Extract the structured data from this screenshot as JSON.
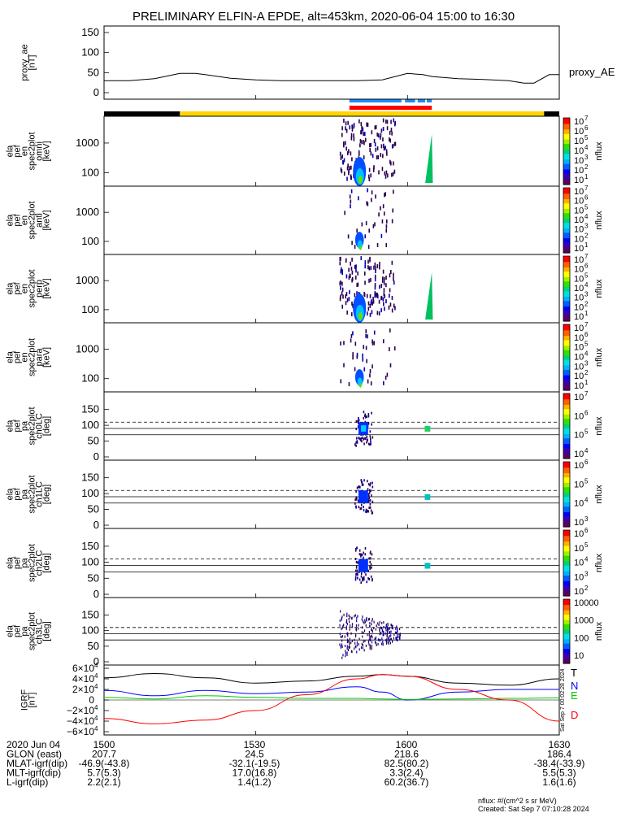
{
  "title": "PRELIMINARY ELFIN-A EPDE, alt=453km, 2020-06-04 15:00 to 16:30",
  "colors": {
    "colorbar": [
      "#5a0060",
      "#3a00b0",
      "#0000ff",
      "#0060ff",
      "#00b0ff",
      "#00e0e0",
      "#00d080",
      "#30e000",
      "#a0f000",
      "#ffff00",
      "#ffb000",
      "#ff6000",
      "#ff0000"
    ],
    "status_bar": [
      "#000000",
      "#ffd400"
    ],
    "blue_marks": "#1a8cff",
    "red_mark": "#ff0000",
    "field": {
      "T": "#000000",
      "N": "#0000ff",
      "E": "#00cc00",
      "D": "#ff0000"
    }
  },
  "panels": [
    {
      "id": "proxy_ae",
      "ylabel": [
        "proxy_ae",
        "[nT]"
      ],
      "yticks": [
        "150",
        "100",
        "50",
        "0"
      ],
      "legend": "proxy_AE"
    },
    {
      "id": "omni",
      "ylabel": [
        "ela",
        "pef",
        "en",
        "spec2plot",
        "omni",
        "[keV]"
      ],
      "yticks": [
        "1000",
        "100"
      ],
      "cb_ticks": [
        "10",
        "7",
        "10",
        "6",
        "10",
        "5",
        "10",
        "4",
        "10",
        "3",
        "10",
        "2",
        "10",
        "1"
      ],
      "cb_label": "nflux"
    },
    {
      "id": "anti",
      "ylabel": [
        "ela",
        "pef",
        "en",
        "spec2plot",
        "anti",
        "[keV]"
      ],
      "yticks": [
        "1000",
        "100"
      ],
      "cb_ticks": [
        "10",
        "7",
        "10",
        "6",
        "10",
        "5",
        "10",
        "4",
        "10",
        "3",
        "10",
        "2",
        "10",
        "1"
      ],
      "cb_label": "nflux"
    },
    {
      "id": "perp",
      "ylabel": [
        "ela",
        "pef",
        "en",
        "spec2plot",
        "perp",
        "[keV]"
      ],
      "yticks": [
        "1000",
        "100"
      ],
      "cb_ticks": [
        "10",
        "7",
        "10",
        "6",
        "10",
        "5",
        "10",
        "4",
        "10",
        "3",
        "10",
        "2",
        "10",
        "1"
      ],
      "cb_label": "nflux"
    },
    {
      "id": "para",
      "ylabel": [
        "ela",
        "pef",
        "en",
        "spec2plot",
        "para",
        "[keV]"
      ],
      "yticks": [
        "1000",
        "100"
      ],
      "cb_ticks": [
        "10",
        "7",
        "10",
        "6",
        "10",
        "5",
        "10",
        "4",
        "10",
        "3",
        "10",
        "2",
        "10",
        "1"
      ],
      "cb_label": "nflux"
    },
    {
      "id": "ch0LC",
      "ylabel": [
        "ela",
        "pef",
        "pa",
        "spec2plot",
        "ch0LC",
        "[deg]"
      ],
      "yticks": [
        "150",
        "100",
        "50",
        "0"
      ],
      "cb_ticks": [
        "10",
        "7",
        "10",
        "6",
        "10",
        "5",
        "10",
        "4"
      ],
      "cb_label": "nflux"
    },
    {
      "id": "ch1LC",
      "ylabel": [
        "ela",
        "pef",
        "pa",
        "spec2plot",
        "ch1LC",
        "[deg]"
      ],
      "yticks": [
        "150",
        "100",
        "50",
        "0"
      ],
      "cb_ticks": [
        "10",
        "6",
        "10",
        "5",
        "10",
        "4",
        "10",
        "3"
      ],
      "cb_label": "nflux"
    },
    {
      "id": "ch2LC",
      "ylabel": [
        "ela",
        "pef",
        "pa",
        "spec2plot",
        "ch2LC",
        "[deg]"
      ],
      "yticks": [
        "150",
        "100",
        "50",
        "0"
      ],
      "cb_ticks": [
        "10",
        "6",
        "10",
        "5",
        "10",
        "4",
        "10",
        "3",
        "10",
        "2"
      ],
      "cb_label": "nflux"
    },
    {
      "id": "ch3LC",
      "ylabel": [
        "ela",
        "pef",
        "pa",
        "spec2plot",
        "ch3LC",
        "[deg]"
      ],
      "yticks": [
        "150",
        "100",
        "50",
        "0"
      ],
      "cb_ticks": [
        "10000",
        "1000",
        "100",
        "10"
      ],
      "cb_label": "nflux"
    },
    {
      "id": "igrf",
      "ylabel": [
        "IGRF",
        "[nT]"
      ],
      "yticks": [
        "6×10",
        "4×10",
        "2×10",
        "0",
        "−2×10",
        "−4×10",
        "−6×10"
      ],
      "ytick_exp": "4",
      "legend": [
        "T",
        "N",
        "E",
        "D"
      ]
    }
  ],
  "side_stamp": "Sat Sep  7 00:02:28 2024",
  "footer": {
    "rows": [
      {
        "label": "2020 Jun 04",
        "values": [
          "1500",
          "1530",
          "1600",
          "1630"
        ]
      },
      {
        "label": "GLON (east)",
        "values": [
          "207.7",
          "24.5",
          "218.6",
          "186.4"
        ]
      },
      {
        "label": "MLAT-igrf(dip)",
        "values": [
          "-46.9(-43.8)",
          "-32.1(-19.5)",
          "82.5(80.2)",
          "-38.4(-33.9)"
        ]
      },
      {
        "label": "MLT-igrf(dip)",
        "values": [
          "5.7(5.3)",
          "17.0(16.8)",
          "3.3(2.4)",
          "5.5(5.3)"
        ]
      },
      {
        "label": "L-igrf(dip)",
        "values": [
          "2.2(2.1)",
          "1.4(1.2)",
          "60.2(36.7)",
          "1.6(1.6)"
        ]
      }
    ],
    "units_note": "nflux: #/(cm^2 s sr MeV)",
    "created": "Created: Sat Sep  7 07:10:28 2024"
  },
  "chart_data": {
    "type": "line",
    "x_range": [
      "15:00",
      "16:30"
    ],
    "x_ticks": [
      "1500",
      "1530",
      "1600",
      "1630"
    ],
    "proxy_ae": {
      "ylim": [
        0,
        150
      ],
      "x_min": [
        0,
        5,
        10,
        15,
        18,
        20,
        25,
        30,
        35,
        40,
        45,
        50,
        55,
        60,
        63,
        65,
        70,
        75,
        80,
        83,
        85,
        88,
        90
      ],
      "values": [
        30,
        30,
        35,
        48,
        48,
        45,
        36,
        32,
        30,
        30,
        30,
        30,
        32,
        48,
        45,
        40,
        35,
        33,
        30,
        24,
        24,
        45,
        45
      ]
    },
    "spectrogram_activity_min": [
      [
        46.5,
        57.5
      ],
      [
        63.5,
        65
      ]
    ],
    "pa_reference_lines_deg": [
      110,
      90,
      70
    ],
    "igrf": {
      "ylim": [
        -60000,
        60000
      ],
      "x_min": [
        0,
        10,
        20,
        30,
        40,
        50,
        55,
        60,
        70,
        80,
        90
      ],
      "T": [
        42000,
        50000,
        42000,
        32000,
        36000,
        45000,
        48000,
        45000,
        32000,
        28000,
        40000
      ],
      "N": [
        18000,
        8000,
        18000,
        12000,
        15000,
        25000,
        15000,
        0,
        15000,
        20000,
        20000
      ],
      "E": [
        5000,
        2000,
        8000,
        5000,
        3000,
        3000,
        2000,
        1000,
        2000,
        3000,
        4000
      ],
      "D": [
        -35000,
        -45000,
        -38000,
        -20000,
        10000,
        40000,
        48000,
        45000,
        20000,
        0,
        -40000
      ]
    }
  }
}
